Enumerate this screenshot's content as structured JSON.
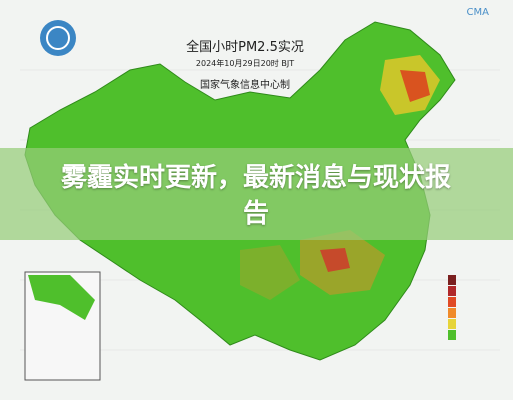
{
  "map": {
    "title": "全国小时PM2.5实况",
    "time": "2024年10月29日20时 BJT",
    "producer": "国家气象信息中心制",
    "brand": "CMA"
  },
  "banner": {
    "headline": "雾霾实时更新，最新消息与现状报告"
  }
}
